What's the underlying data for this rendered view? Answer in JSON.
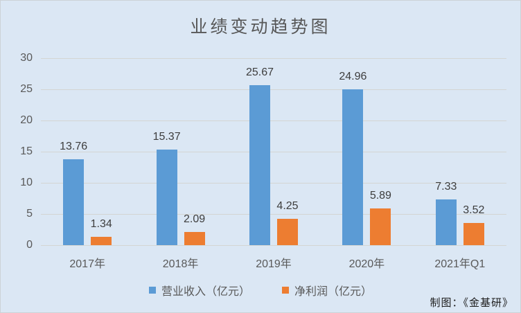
{
  "title": "业绩变动趋势图",
  "credit": "制图：《金基研》",
  "colors": {
    "background": "#dbe7f4",
    "revenue_blue": "#5b9bd5",
    "profit_orange": "#ed7d31",
    "gridline": "#d4d5d2",
    "axis_text": "#595959",
    "value_text": "#3d3d3d"
  },
  "chart_data": {
    "type": "bar",
    "title": "业绩变动趋势图",
    "categories": [
      "2017年",
      "2018年",
      "2019年",
      "2020年",
      "2021年Q1"
    ],
    "series": [
      {
        "name": "营业收入（亿元）",
        "color": "#5b9bd5",
        "values": [
          13.76,
          15.37,
          25.67,
          24.96,
          7.33
        ]
      },
      {
        "name": "净利润（亿元）",
        "color": "#ed7d31",
        "values": [
          1.34,
          2.09,
          4.25,
          5.89,
          3.52
        ]
      }
    ],
    "xlabel": "",
    "ylabel": "",
    "ylim": [
      0,
      30
    ],
    "ytick_step": 5,
    "yticks": [
      0,
      5,
      10,
      15,
      20,
      25,
      30
    ],
    "grid": true,
    "legend_position": "bottom",
    "annotation": "制图：《金基研》"
  }
}
